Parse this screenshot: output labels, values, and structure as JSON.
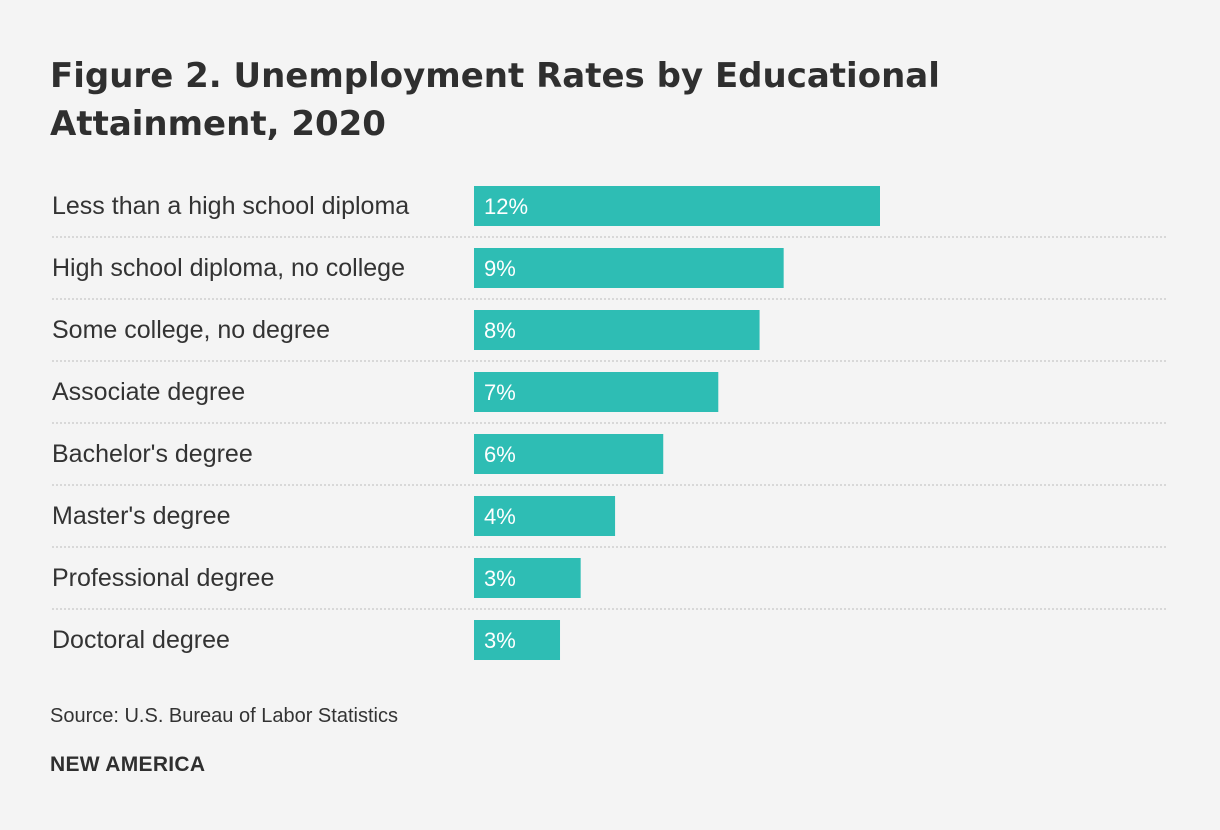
{
  "title": "Figure 2. Unemployment Rates by Educational Attainment, 2020",
  "source": "Source: U.S. Bureau of Labor Statistics",
  "brand": "NEW AMERICA",
  "colors": {
    "bar": "#2ebdb4",
    "bar_label": "#ffffff",
    "category_label": "#333333",
    "divider": "#c8c8c8",
    "background": "#f4f4f4"
  },
  "chart_data": {
    "type": "bar",
    "orientation": "horizontal",
    "categories": [
      "Less than a high school diploma",
      "High school diploma, no college",
      "Some college, no degree",
      "Associate degree",
      "Bachelor's degree",
      "Master's degree",
      "Professional degree",
      "Doctoral degree"
    ],
    "values": [
      12,
      9,
      8,
      7,
      6,
      4,
      3,
      3
    ],
    "value_labels": [
      "12%",
      "9%",
      "8%",
      "7%",
      "6%",
      "4%",
      "3%",
      "3%"
    ],
    "estimated_values": [
      11.8,
      9.0,
      8.3,
      7.1,
      5.5,
      4.1,
      3.1,
      2.5
    ],
    "title": "Figure 2. Unemployment Rates by Educational Attainment, 2020",
    "xlabel": "",
    "ylabel": "",
    "xlim": [
      0,
      20
    ],
    "grid": false,
    "legend": "none"
  }
}
